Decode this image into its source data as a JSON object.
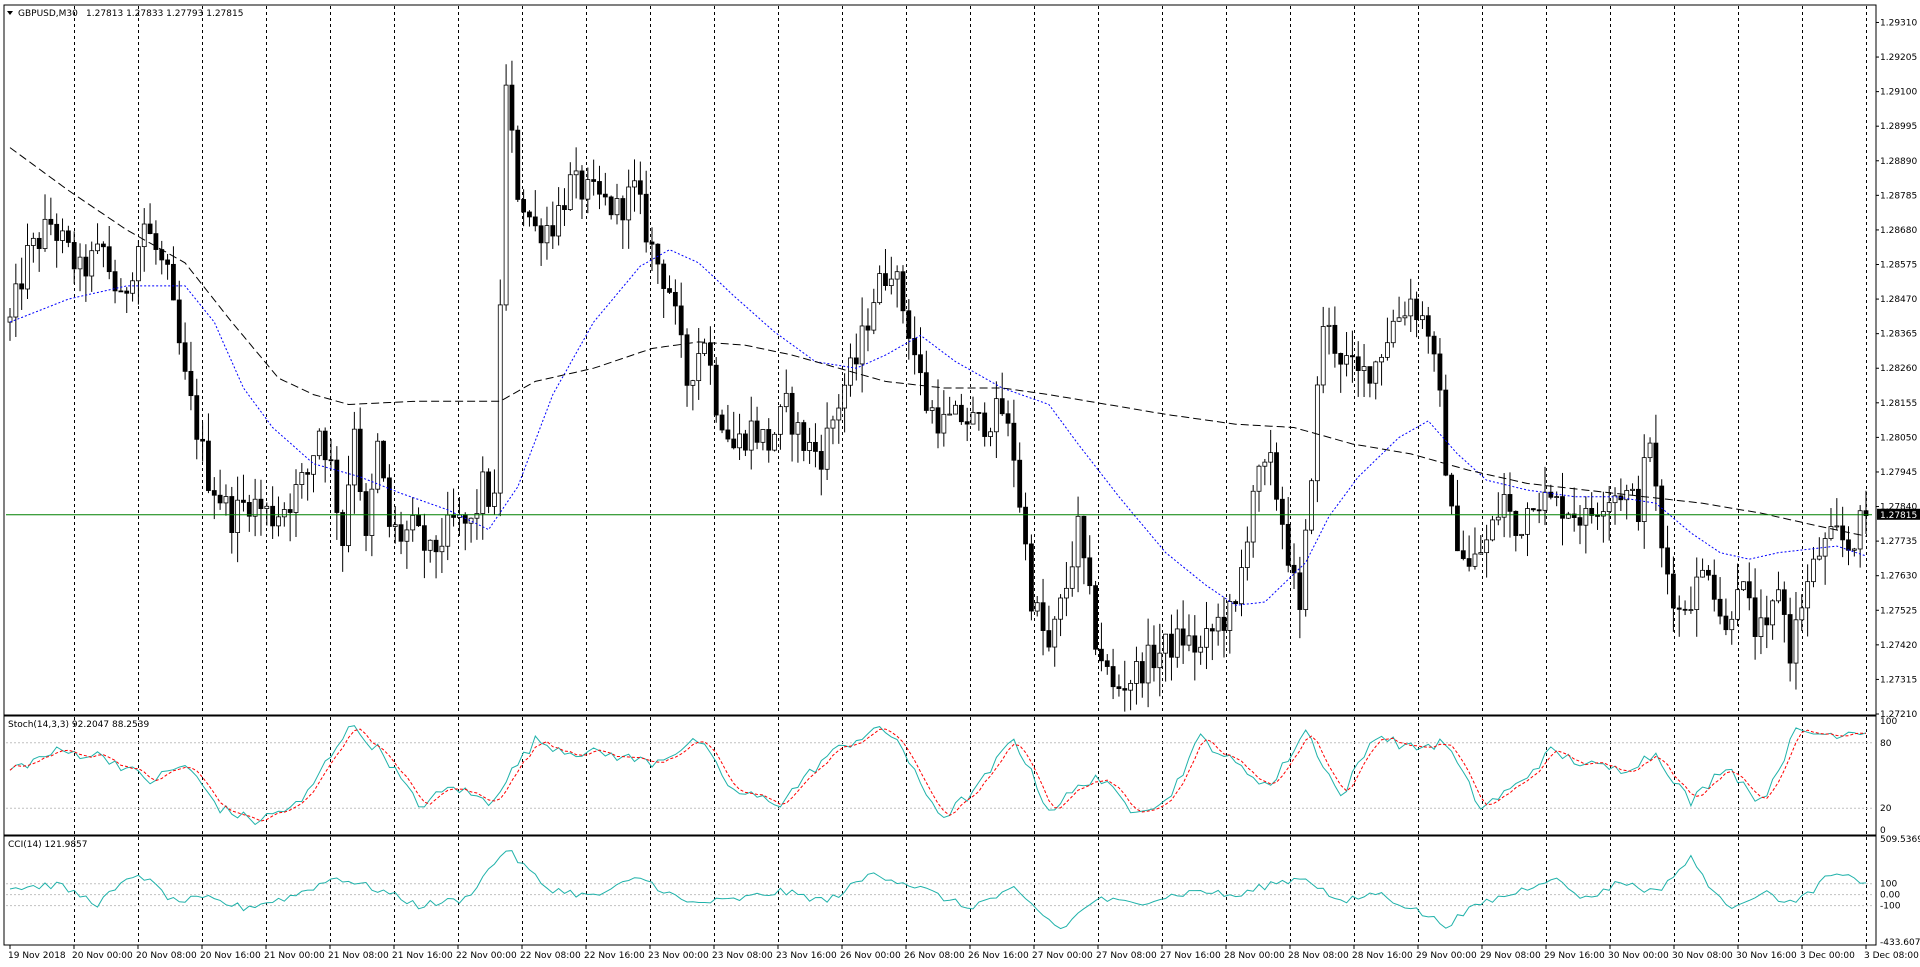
{
  "colors": {
    "background": "#ffffff",
    "frame": "#000000",
    "bull_body": "#ffffff",
    "bear_body": "#000000",
    "candle_wick": "#000000",
    "ma_fast": "#0000ff",
    "ma_slow": "#000000",
    "current_price_line": "#008000",
    "stoch_main": "#20b2aa",
    "stoch_signal": "#ff0000",
    "cci": "#20b2aa",
    "level_line": "#c0c0c0"
  },
  "main_header": {
    "symbol": "GBPUSD,M30",
    "ohlc": "1.27813 1.27833 1.27793 1.27815"
  },
  "stoch_header": "Stoch(14,3,3) 92.2047 88.2539",
  "cci_header": "CCI(14) 121.9857",
  "price_axis": {
    "ticks": [
      "1.29310",
      "1.29205",
      "1.29100",
      "1.28995",
      "1.28890",
      "1.28785",
      "1.28680",
      "1.28575",
      "1.28470",
      "1.28365",
      "1.28260",
      "1.28155",
      "1.28050",
      "1.27945",
      "1.27840",
      "1.27735",
      "1.27630",
      "1.27525",
      "1.27420",
      "1.27315",
      "1.27210"
    ],
    "current_price": "1.27815"
  },
  "stoch_axis": {
    "ticks": [
      "100",
      "80",
      "20",
      "0"
    ]
  },
  "cci_axis": {
    "ticks": [
      "509.5369",
      "100",
      "0.00",
      "-100",
      "-433.6072"
    ]
  },
  "time_axis": {
    "labels": [
      "19 Nov 2018",
      "20 Nov 00:00",
      "20 Nov 08:00",
      "20 Nov 16:00",
      "21 Nov 00:00",
      "21 Nov 08:00",
      "21 Nov 16:00",
      "22 Nov 00:00",
      "22 Nov 08:00",
      "22 Nov 16:00",
      "23 Nov 00:00",
      "23 Nov 08:00",
      "23 Nov 16:00",
      "26 Nov 00:00",
      "26 Nov 08:00",
      "26 Nov 16:00",
      "27 Nov 00:00",
      "27 Nov 08:00",
      "27 Nov 16:00",
      "28 Nov 00:00",
      "28 Nov 08:00",
      "28 Nov 16:00",
      "29 Nov 00:00",
      "29 Nov 08:00",
      "29 Nov 16:00",
      "30 Nov 00:00",
      "30 Nov 08:00",
      "30 Nov 16:00",
      "3 Dec 00:00",
      "3 Dec 08:00"
    ]
  },
  "chart_data": {
    "type": "candlestick",
    "symbol": "GBPUSD",
    "timeframe": "M30",
    "ylim": [
      1.2721,
      1.2936
    ],
    "current_price": 1.27815,
    "grid": "vertical dashed lines at day boundaries",
    "price_path": {
      "x": [
        "19 Nov 2018",
        "20 Nov 00:00",
        "20 Nov 08:00",
        "20 Nov 16:00",
        "21 Nov 00:00",
        "21 Nov 08:00",
        "21 Nov 16:00",
        "22 Nov 00:00",
        "22 Nov 08:00",
        "22 Nov 16:00",
        "23 Nov 00:00",
        "23 Nov 08:00",
        "23 Nov 16:00",
        "26 Nov 00:00",
        "26 Nov 08:00",
        "26 Nov 16:00",
        "27 Nov 00:00",
        "27 Nov 08:00",
        "27 Nov 16:00",
        "28 Nov 00:00",
        "28 Nov 08:00",
        "28 Nov 16:00",
        "29 Nov 00:00",
        "29 Nov 08:00",
        "29 Nov 16:00",
        "30 Nov 00:00",
        "30 Nov 08:00",
        "30 Nov 16:00",
        "3 Dec 00:00",
        "3 Dec 08:00"
      ],
      "points": [
        [
          0,
          1.284
        ],
        [
          3,
          1.286
        ],
        [
          7,
          1.287
        ],
        [
          12,
          1.2855
        ],
        [
          16,
          1.2862
        ],
        [
          19,
          1.2845
        ],
        [
          23,
          1.287
        ],
        [
          27,
          1.2853
        ],
        [
          30,
          1.2822
        ],
        [
          34,
          1.2793
        ],
        [
          38,
          1.2781
        ],
        [
          41,
          1.2786
        ],
        [
          45,
          1.2781
        ],
        [
          48,
          1.2786
        ],
        [
          51,
          1.2794
        ],
        [
          53,
          1.2808
        ],
        [
          55,
          1.2796
        ],
        [
          57,
          1.2774
        ],
        [
          59,
          1.281
        ],
        [
          61,
          1.2772
        ],
        [
          63,
          1.2802
        ],
        [
          65,
          1.2778
        ],
        [
          67,
          1.2775
        ],
        [
          69,
          1.2777
        ],
        [
          72,
          1.2769
        ],
        [
          76,
          1.2779
        ],
        [
          79,
          1.2778
        ],
        [
          81,
          1.279
        ],
        [
          83,
          1.2784
        ],
        [
          85,
          1.291
        ],
        [
          87,
          1.288
        ],
        [
          90,
          1.2868
        ],
        [
          93,
          1.287
        ],
        [
          96,
          1.2882
        ],
        [
          100,
          1.2878
        ],
        [
          104,
          1.2874
        ],
        [
          107,
          1.288
        ],
        [
          110,
          1.2862
        ],
        [
          113,
          1.285
        ],
        [
          116,
          1.2822
        ],
        [
          119,
          1.2836
        ],
        [
          121,
          1.2816
        ],
        [
          124,
          1.2802
        ],
        [
          127,
          1.2808
        ],
        [
          130,
          1.2803
        ],
        [
          133,
          1.2814
        ],
        [
          136,
          1.2803
        ],
        [
          139,
          1.28
        ],
        [
          143,
          1.2821
        ],
        [
          145,
          1.2828
        ],
        [
          148,
          1.2848
        ],
        [
          151,
          1.2858
        ],
        [
          154,
          1.2838
        ],
        [
          157,
          1.2815
        ],
        [
          160,
          1.2809
        ],
        [
          163,
          1.2811
        ],
        [
          166,
          1.2809
        ],
        [
          170,
          1.2813
        ],
        [
          172,
          1.28
        ],
        [
          175,
          1.2757
        ],
        [
          178,
          1.274
        ],
        [
          181,
          1.276
        ],
        [
          183,
          1.2777
        ],
        [
          186,
          1.2744
        ],
        [
          189,
          1.2728
        ],
        [
          192,
          1.2732
        ],
        [
          195,
          1.2737
        ],
        [
          198,
          1.2741
        ],
        [
          201,
          1.2744
        ],
        [
          204,
          1.274
        ],
        [
          207,
          1.2749
        ],
        [
          210,
          1.2752
        ],
        [
          213,
          1.279
        ],
        [
          216,
          1.2796
        ],
        [
          218,
          1.278
        ],
        [
          221,
          1.275
        ],
        [
          223,
          1.2796
        ],
        [
          225,
          1.284
        ],
        [
          228,
          1.283
        ],
        [
          231,
          1.2823
        ],
        [
          234,
          1.2828
        ],
        [
          237,
          1.284
        ],
        [
          240,
          1.2847
        ],
        [
          243,
          1.2838
        ],
        [
          245,
          1.2815
        ],
        [
          247,
          1.278
        ],
        [
          250,
          1.2765
        ],
        [
          253,
          1.2773
        ],
        [
          256,
          1.2787
        ],
        [
          258,
          1.2775
        ],
        [
          261,
          1.2788
        ],
        [
          264,
          1.2785
        ],
        [
          267,
          1.2784
        ],
        [
          270,
          1.278
        ],
        [
          273,
          1.2787
        ],
        [
          276,
          1.2789
        ],
        [
          279,
          1.2784
        ],
        [
          281,
          1.2805
        ],
        [
          283,
          1.277
        ],
        [
          286,
          1.2752
        ],
        [
          289,
          1.276
        ],
        [
          291,
          1.2767
        ],
        [
          294,
          1.2745
        ],
        [
          296,
          1.2763
        ],
        [
          299,
          1.2747
        ],
        [
          301,
          1.2744
        ],
        [
          303,
          1.2761
        ],
        [
          305,
          1.274
        ],
        [
          307,
          1.2755
        ],
        [
          310,
          1.277
        ],
        [
          313,
          1.2775
        ],
        [
          315,
          1.2772
        ],
        [
          318,
          1.2781
        ]
      ],
      "candle_count": 319
    },
    "series": [
      {
        "name": "",
        "kind": "moving average (blue dotted)",
        "points": [
          [
            0,
            1.284
          ],
          [
            10,
            1.2847
          ],
          [
            20,
            1.2851
          ],
          [
            30,
            1.2851
          ],
          [
            35,
            1.284
          ],
          [
            40,
            1.282
          ],
          [
            45,
            1.2808
          ],
          [
            52,
            1.2797
          ],
          [
            60,
            1.2793
          ],
          [
            67,
            1.2788
          ],
          [
            75,
            1.2783
          ],
          [
            82,
            1.2777
          ],
          [
            87,
            1.279
          ],
          [
            93,
            1.2818
          ],
          [
            100,
            1.284
          ],
          [
            108,
            1.2857
          ],
          [
            113,
            1.2862
          ],
          [
            118,
            1.2858
          ],
          [
            124,
            1.2848
          ],
          [
            131,
            1.2837
          ],
          [
            138,
            1.2828
          ],
          [
            145,
            1.2826
          ],
          [
            150,
            1.283
          ],
          [
            156,
            1.2836
          ],
          [
            162,
            1.2828
          ],
          [
            170,
            1.282
          ],
          [
            178,
            1.2815
          ],
          [
            183,
            1.2803
          ],
          [
            190,
            1.2787
          ],
          [
            198,
            1.277
          ],
          [
            205,
            1.276
          ],
          [
            210,
            1.2754
          ],
          [
            215,
            1.2755
          ],
          [
            222,
            1.2767
          ],
          [
            226,
            1.2781
          ],
          [
            231,
            1.2793
          ],
          [
            238,
            1.2805
          ],
          [
            243,
            1.281
          ],
          [
            248,
            1.28
          ],
          [
            253,
            1.2792
          ],
          [
            260,
            1.2789
          ],
          [
            268,
            1.2787
          ],
          [
            275,
            1.2787
          ],
          [
            282,
            1.2785
          ],
          [
            288,
            1.2776
          ],
          [
            293,
            1.277
          ],
          [
            298,
            1.2768
          ],
          [
            303,
            1.277
          ],
          [
            308,
            1.2771
          ],
          [
            313,
            1.2772
          ],
          [
            318,
            1.2769
          ]
        ]
      },
      {
        "name": "",
        "kind": "moving average (black dashed)",
        "points": [
          [
            0,
            1.2893
          ],
          [
            10,
            1.288
          ],
          [
            20,
            1.2868
          ],
          [
            30,
            1.2858
          ],
          [
            38,
            1.284
          ],
          [
            46,
            1.2823
          ],
          [
            52,
            1.2818
          ],
          [
            58,
            1.2815
          ],
          [
            70,
            1.2816
          ],
          [
            84,
            1.2816
          ],
          [
            90,
            1.2822
          ],
          [
            100,
            1.2826
          ],
          [
            110,
            1.2832
          ],
          [
            118,
            1.2834
          ],
          [
            126,
            1.2833
          ],
          [
            134,
            1.283
          ],
          [
            142,
            1.2826
          ],
          [
            150,
            1.2822
          ],
          [
            160,
            1.282
          ],
          [
            170,
            1.282
          ],
          [
            178,
            1.2818
          ],
          [
            188,
            1.2815
          ],
          [
            198,
            1.2812
          ],
          [
            210,
            1.2809
          ],
          [
            220,
            1.2808
          ],
          [
            230,
            1.2803
          ],
          [
            240,
            1.28
          ],
          [
            250,
            1.2795
          ],
          [
            260,
            1.2791
          ],
          [
            270,
            1.2789
          ],
          [
            280,
            1.2787
          ],
          [
            290,
            1.2785
          ],
          [
            300,
            1.2782
          ],
          [
            310,
            1.2778
          ],
          [
            318,
            1.2775
          ]
        ]
      }
    ],
    "stochastic": {
      "name": "Stoch(14,3,3)",
      "main": 92.2047,
      "signal": 88.2539,
      "levels": [
        80,
        20
      ],
      "range": [
        0,
        100
      ],
      "values": [
        [
          0,
          55
        ],
        [
          8,
          72
        ],
        [
          16,
          68
        ],
        [
          24,
          45
        ],
        [
          30,
          60
        ],
        [
          36,
          20
        ],
        [
          42,
          8
        ],
        [
          50,
          25
        ],
        [
          58,
          96
        ],
        [
          64,
          70
        ],
        [
          70,
          22
        ],
        [
          76,
          40
        ],
        [
          82,
          25
        ],
        [
          90,
          82
        ],
        [
          96,
          72
        ],
        [
          102,
          70
        ],
        [
          110,
          62
        ],
        [
          118,
          82
        ],
        [
          124,
          35
        ],
        [
          132,
          25
        ],
        [
          140,
          68
        ],
        [
          148,
          92
        ],
        [
          152,
          85
        ],
        [
          156,
          40
        ],
        [
          160,
          12
        ],
        [
          166,
          40
        ],
        [
          172,
          85
        ],
        [
          178,
          18
        ],
        [
          186,
          50
        ],
        [
          192,
          20
        ],
        [
          198,
          25
        ],
        [
          204,
          85
        ],
        [
          210,
          60
        ],
        [
          216,
          40
        ],
        [
          222,
          92
        ],
        [
          228,
          30
        ],
        [
          234,
          88
        ],
        [
          240,
          75
        ],
        [
          246,
          80
        ],
        [
          252,
          20
        ],
        [
          258,
          40
        ],
        [
          264,
          72
        ],
        [
          270,
          60
        ],
        [
          276,
          55
        ],
        [
          282,
          70
        ],
        [
          288,
          25
        ],
        [
          294,
          60
        ],
        [
          300,
          25
        ],
        [
          306,
          90
        ],
        [
          312,
          88
        ],
        [
          318,
          92
        ]
      ]
    },
    "cci": {
      "name": "CCI(14)",
      "value": 121.9857,
      "levels": [
        100,
        0,
        -100
      ],
      "range": [
        -433.6072,
        509.5369
      ],
      "values": [
        [
          0,
          60
        ],
        [
          8,
          90
        ],
        [
          15,
          -80
        ],
        [
          22,
          200
        ],
        [
          28,
          -60
        ],
        [
          34,
          -40
        ],
        [
          40,
          -120
        ],
        [
          48,
          -20
        ],
        [
          56,
          160
        ],
        [
          64,
          30
        ],
        [
          70,
          -100
        ],
        [
          78,
          -40
        ],
        [
          85,
          420
        ],
        [
          92,
          60
        ],
        [
          100,
          -20
        ],
        [
          108,
          160
        ],
        [
          116,
          -80
        ],
        [
          124,
          -50
        ],
        [
          132,
          30
        ],
        [
          140,
          -60
        ],
        [
          148,
          200
        ],
        [
          156,
          60
        ],
        [
          164,
          -120
        ],
        [
          172,
          40
        ],
        [
          180,
          -320
        ],
        [
          186,
          -40
        ],
        [
          192,
          -80
        ],
        [
          198,
          -20
        ],
        [
          204,
          40
        ],
        [
          210,
          -20
        ],
        [
          216,
          100
        ],
        [
          222,
          160
        ],
        [
          228,
          -80
        ],
        [
          234,
          20
        ],
        [
          240,
          -120
        ],
        [
          246,
          -280
        ],
        [
          252,
          -80
        ],
        [
          258,
          20
        ],
        [
          264,
          160
        ],
        [
          270,
          -40
        ],
        [
          276,
          120
        ],
        [
          282,
          20
        ],
        [
          288,
          330
        ],
        [
          294,
          -120
        ],
        [
          300,
          20
        ],
        [
          306,
          -80
        ],
        [
          312,
          180
        ],
        [
          318,
          122
        ]
      ]
    }
  }
}
